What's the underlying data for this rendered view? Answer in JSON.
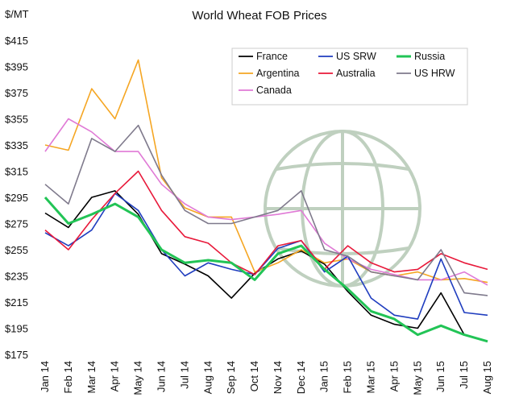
{
  "chart_data": {
    "type": "line",
    "title": "World Wheat FOB Prices",
    "ylabel": "$/MT",
    "ylim": [
      175,
      415
    ],
    "yticks": [
      "$415",
      "$395",
      "$375",
      "$355",
      "$335",
      "$315",
      "$295",
      "$275",
      "$255",
      "$235",
      "$215",
      "$195",
      "$175"
    ],
    "ytick_values": [
      415,
      395,
      375,
      355,
      335,
      315,
      295,
      275,
      255,
      235,
      215,
      195,
      175
    ],
    "xtick_labels": [
      "Jan 14",
      "Feb 14",
      "Mar 14",
      "Apr 14",
      "May 14",
      "Jun 14",
      "Jul 14",
      "Aug 14",
      "Sep 14",
      "Oct 14",
      "Nov 14",
      "Dec 14",
      "Jan 15",
      "Feb 15",
      "Mar 15",
      "Apr 15",
      "May 15",
      "Jun 15",
      "Jul 15",
      "Aug 15"
    ],
    "x": [
      "Jan 14",
      "Feb 14",
      "Mar 14",
      "Apr 14",
      "May 14",
      "Jun 14",
      "Jul 14",
      "Aug 14",
      "Sep 14",
      "Oct 14",
      "Nov 14",
      "Dec 14",
      "Jan 15",
      "Feb 15",
      "Mar 15",
      "Apr 15",
      "May 15",
      "Jun 15",
      "Jul 15",
      "Aug 15"
    ],
    "grid": false,
    "legend_position": "top-right",
    "series": [
      {
        "name": "France",
        "color": "#000000",
        "values": [
          283,
          272,
          295,
          300,
          282,
          252,
          244,
          235,
          218,
          237,
          248,
          254,
          244,
          223,
          205,
          198,
          195,
          222,
          190,
          185
        ]
      },
      {
        "name": "Argentina",
        "color": "#f5a623",
        "values": [
          335,
          331,
          378,
          355,
          400,
          310,
          287,
          280,
          280,
          238,
          245,
          255,
          245,
          248,
          238,
          235,
          238,
          232,
          233,
          230
        ]
      },
      {
        "name": "Canada",
        "color": "#e07ad6",
        "values": [
          330,
          355,
          345,
          330,
          330,
          305,
          290,
          280,
          278,
          280,
          282,
          285,
          260,
          248,
          240,
          236,
          232,
          232,
          238,
          228
        ]
      },
      {
        "name": "US SRW",
        "color": "#1f3dbf",
        "values": [
          268,
          258,
          270,
          298,
          285,
          255,
          235,
          245,
          240,
          236,
          256,
          262,
          238,
          250,
          218,
          205,
          202,
          248,
          207,
          205
        ]
      },
      {
        "name": "Australia",
        "color": "#e8193a",
        "values": [
          270,
          255,
          278,
          298,
          315,
          285,
          265,
          260,
          245,
          236,
          258,
          262,
          240,
          258,
          245,
          238,
          240,
          252,
          245,
          240
        ]
      },
      {
        "name": "Russia",
        "color": "#22c456",
        "values": [
          295,
          275,
          282,
          290,
          280,
          255,
          245,
          247,
          245,
          232,
          252,
          258,
          240,
          225,
          208,
          202,
          190,
          197,
          190,
          185
        ]
      },
      {
        "name": "US HRW",
        "color": "#7f7a8c",
        "values": [
          305,
          290,
          340,
          330,
          350,
          312,
          285,
          275,
          275,
          280,
          285,
          300,
          255,
          250,
          238,
          235,
          232,
          255,
          222,
          220
        ]
      }
    ]
  },
  "icon": "globe-watermark-icon"
}
